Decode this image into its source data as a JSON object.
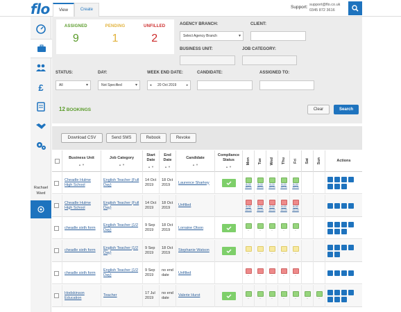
{
  "logo": "flo",
  "tabs": [
    {
      "label": "View"
    },
    {
      "label": "Create"
    }
  ],
  "support": {
    "label": "Support:",
    "email": "support@flo.co.uk",
    "phone": "0345 872 3616"
  },
  "user": {
    "first": "Rachael",
    "last": "Ward"
  },
  "stats": {
    "assigned": {
      "label": "ASSIGNED",
      "value": "9",
      "color": "#5a9b2a"
    },
    "pending": {
      "label": "PENDING",
      "value": "1",
      "color": "#e1b13a"
    },
    "unfilled": {
      "label": "UNFILLED",
      "value": "2",
      "color": "#cc2a2a"
    }
  },
  "filters": {
    "agency_branch": {
      "label": "AGENCY BRANCH:",
      "value": "Select Agency Branch"
    },
    "client": {
      "label": "CLIENT:",
      "value": ""
    },
    "business_unit": {
      "label": "BUSINESS UNIT:",
      "value": ""
    },
    "job_category": {
      "label": "JOB CATEGORY:",
      "value": ""
    },
    "status": {
      "label": "STATUS:",
      "value": "All"
    },
    "day": {
      "label": "DAY:",
      "value": "Not Specified"
    },
    "week_end_date": {
      "label": "WEEK END DATE:",
      "value": "20 Oct 2019"
    },
    "candidate": {
      "label": "CANDIDATE:",
      "value": ""
    },
    "assigned_to": {
      "label": "ASSIGNED TO:",
      "value": ""
    }
  },
  "bookings": {
    "count": "12",
    "label": "BOOKINGS"
  },
  "buttons": {
    "clear": "Clear",
    "search": "Search",
    "download_csv": "Download CSV",
    "send_sms": "Send SMS",
    "rebook": "Rebook",
    "revoke": "Revoke"
  },
  "columns": {
    "business_unit": "Business Unit",
    "job_category": "Job Category",
    "start_date": "Start Date",
    "end_date": "End Date",
    "candidate": "Candidate",
    "compliance": "Compliance Status",
    "days": [
      "Mon",
      "Tue",
      "Wed",
      "Thu",
      "Fri",
      "Sat",
      "Sun"
    ],
    "actions": "Actions",
    "sort": "▲ ▼"
  },
  "time_start": "8:00",
  "time_end": "16:00",
  "rows": [
    {
      "bu": "Cheadle Hulme High School",
      "job": "English Teacher (Full Day)",
      "start": "14 Oct 2019",
      "end": "18 Oct 2019",
      "cand": "Laurence Sharkey",
      "compliant": true,
      "days": [
        "g",
        "g",
        "g",
        "g",
        "g",
        "",
        ""
      ],
      "times": true
    },
    {
      "bu": "Cheadle Hulme High School",
      "job": "English Teacher (Full Day)",
      "start": "14 Oct 2019",
      "end": "18 Oct 2019",
      "cand": "Unfilled",
      "compliant": false,
      "days": [
        "r",
        "r",
        "r",
        "r",
        "r",
        "",
        ""
      ],
      "times": true
    },
    {
      "bu": "cheadle sixth form",
      "job": "English Teacher (1/2 Day)",
      "start": "9 Sep 2019",
      "end": "18 Oct 2019",
      "cand": "Lorraine Olson",
      "compliant": true,
      "days": [
        "g",
        "g",
        "g",
        "g",
        "g",
        "",
        ""
      ],
      "times": false
    },
    {
      "bu": "cheadle sixth form",
      "job": "English Teacher (1/2 Day)",
      "start": "9 Sep 2019",
      "end": "18 Oct 2019",
      "cand": "Stephanie Watson",
      "compliant": true,
      "days": [
        "y",
        "y",
        "y",
        "y",
        "y",
        "",
        ""
      ],
      "times": false
    },
    {
      "bu": "cheadle sixth form",
      "job": "English Teacher (1/2 Day)",
      "start": "9 Sep 2019",
      "end": "no end date",
      "cand": "Unfilled",
      "compliant": false,
      "days": [
        "r",
        "r",
        "r",
        "r",
        "r",
        "",
        ""
      ],
      "times": false
    },
    {
      "bu": "Hodskinson Education",
      "job": "Teacher",
      "start": "17 Jul 2019",
      "end": "no end date",
      "cand": "Valerie Hurst",
      "compliant": true,
      "days": [
        "g",
        "g",
        "g",
        "g",
        "g",
        "g",
        "g"
      ],
      "times": false
    }
  ],
  "icons": {
    "search": "search-icon",
    "dashboard": "dashboard-icon",
    "bookings": "briefcase-icon",
    "candidates": "people-icon",
    "finance": "pound-icon",
    "documents": "document-icon",
    "handshake": "handshake-icon",
    "settings": "gears-icon",
    "help": "help-icon"
  }
}
